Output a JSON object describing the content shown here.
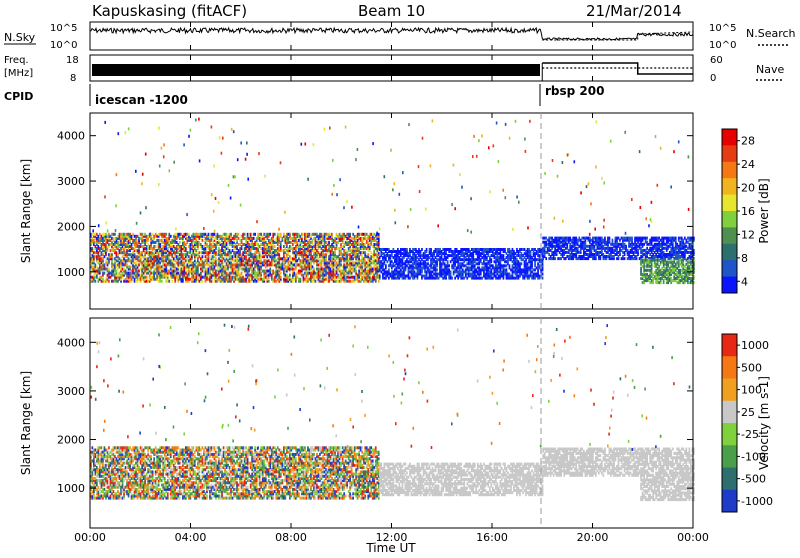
{
  "header": {
    "radar": "Kapuskasing (fitACF)",
    "beam": "Beam 10",
    "date": "21/Mar/2014"
  },
  "strips": {
    "nsky": {
      "label": "N.Sky",
      "ticks": [
        "10^5",
        "10^0"
      ],
      "right_ticks": [
        "10^5",
        "10^0"
      ],
      "right_label": "N.Search",
      "color": "#000000"
    },
    "freq": {
      "label_line1": "Freq.",
      "label_line2": "[MHz]",
      "ticks": [
        "18",
        "8"
      ],
      "right_ticks": [
        "60",
        "0"
      ],
      "right_label": "Nave"
    },
    "cpid": {
      "label": "CPID",
      "segments": [
        {
          "name": "icescan -1200",
          "start_hour": 0
        },
        {
          "name": "rbsp 200",
          "start_hour": 18
        }
      ]
    }
  },
  "time_axis": {
    "label": "Time UT",
    "ticks": [
      "00:00",
      "04:00",
      "08:00",
      "12:00",
      "16:00",
      "20:00",
      "00:00"
    ],
    "range_hours": [
      0,
      24
    ]
  },
  "chart_data": [
    {
      "type": "heatmap",
      "panel": "power",
      "ylabel": "Slant Range [km]",
      "yticks": [
        "4000",
        "3000",
        "2000",
        "1000"
      ],
      "ylim": [
        180,
        4500
      ],
      "colorbar": {
        "label": "Power [dB]",
        "ticks": [
          "28",
          "24",
          "20",
          "16",
          "12",
          "8",
          "4"
        ],
        "range": [
          0,
          30
        ],
        "colors": [
          "#0a14ff",
          "#1e55c8",
          "#2d6e6e",
          "#4f8f4f",
          "#7fcf3f",
          "#e6e62e",
          "#f0b41e",
          "#f57814",
          "#e63c14",
          "#e60000"
        ]
      },
      "bands": [
        {
          "t0": 0.0,
          "t1": 11.5,
          "r0": 780,
          "r1": 1850,
          "level": "mixed"
        },
        {
          "t0": 11.5,
          "t1": 18.0,
          "r0": 850,
          "r1": 1500,
          "level": "low"
        },
        {
          "t0": 18.0,
          "t1": 24.0,
          "r0": 1280,
          "r1": 1750,
          "level": "low"
        },
        {
          "t0": 21.9,
          "t1": 24.0,
          "r0": 750,
          "r1": 1250,
          "level": "mid"
        }
      ]
    },
    {
      "type": "heatmap",
      "panel": "velocity",
      "ylabel": "Slant Range [km]",
      "yticks": [
        "4000",
        "3000",
        "2000",
        "1000"
      ],
      "ylim": [
        180,
        4500
      ],
      "colorbar": {
        "label": "Velocity [m s-1]",
        "ticks": [
          "1000",
          "500",
          "100",
          "25",
          "-25",
          "-100",
          "-500",
          "-1000"
        ],
        "range": [
          -1000,
          1000
        ],
        "colors": [
          "#1e3cc8",
          "#2d6e6e",
          "#4aa04a",
          "#7fd23c",
          "#c8c8c8",
          "#f0a01e",
          "#f57814",
          "#e62814"
        ]
      },
      "bands": [
        {
          "t0": 0.0,
          "t1": 11.5,
          "r0": 780,
          "r1": 1850,
          "level": "mixed"
        },
        {
          "t0": 11.5,
          "t1": 18.0,
          "r0": 850,
          "r1": 1500,
          "level": "ground"
        },
        {
          "t0": 18.0,
          "t1": 24.0,
          "r0": 1250,
          "r1": 1800,
          "level": "ground"
        },
        {
          "t0": 21.9,
          "t1": 24.0,
          "r0": 750,
          "r1": 1250,
          "level": "ground"
        }
      ]
    }
  ]
}
